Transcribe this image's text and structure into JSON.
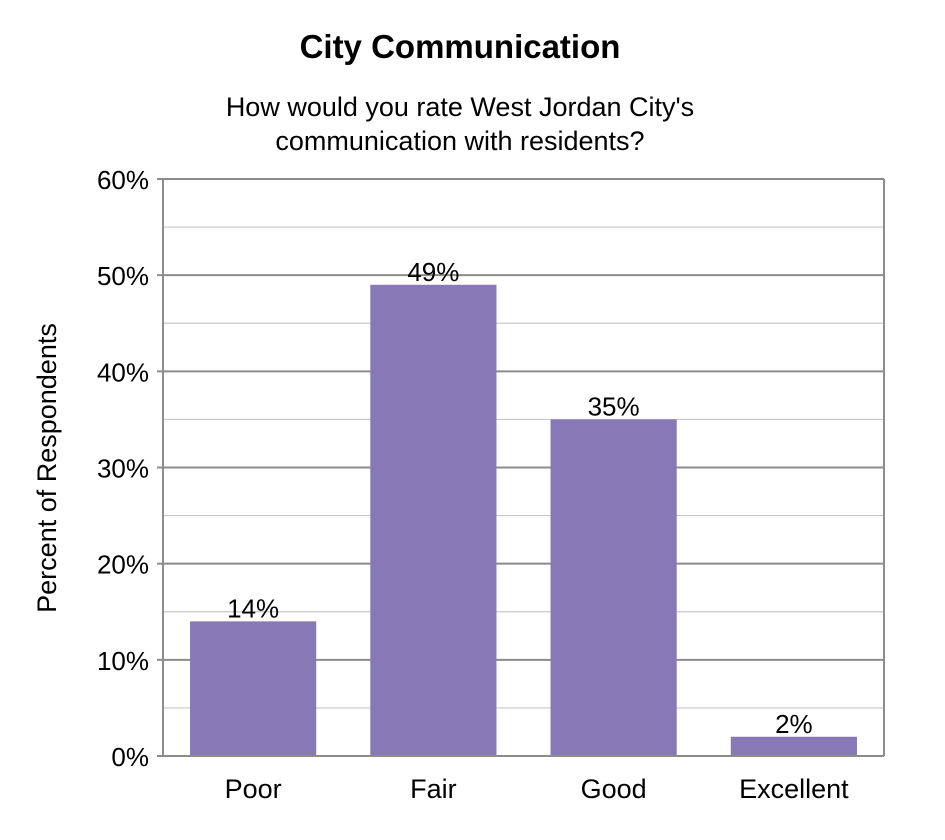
{
  "chart_data": {
    "type": "bar",
    "title": "City Communication",
    "subtitle_lines": [
      "How would you rate West Jordan City's",
      "communication with residents?"
    ],
    "xlabel": "",
    "ylabel": "Percent of Respondents",
    "categories": [
      "Poor",
      "Fair",
      "Good",
      "Excellent"
    ],
    "values": [
      14,
      49,
      35,
      2
    ],
    "data_labels": [
      "14%",
      "49%",
      "35%",
      "2%"
    ],
    "ylim": [
      0,
      60
    ],
    "yticks": [
      0,
      10,
      20,
      30,
      40,
      50,
      60
    ],
    "ytick_labels": [
      "0%",
      "10%",
      "20%",
      "30%",
      "40%",
      "50%",
      "60%"
    ],
    "grid": "major and minor horizontal",
    "legend": "none",
    "bar_color": "#8679b5"
  }
}
